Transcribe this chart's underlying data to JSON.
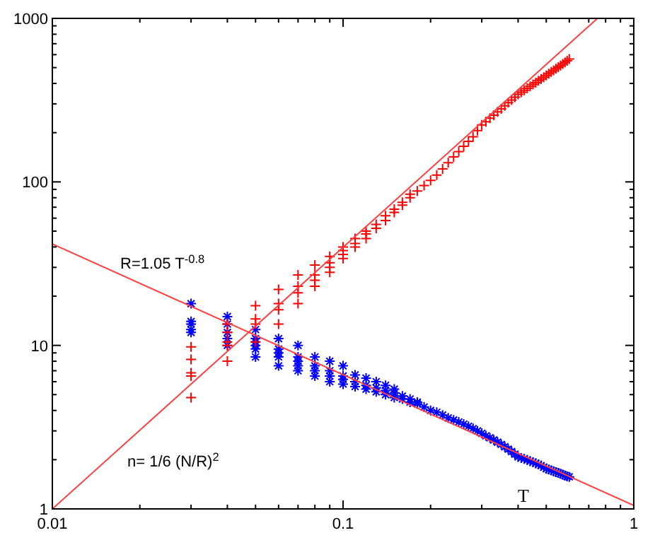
{
  "chart_data": {
    "type": "scatter",
    "log": "xy",
    "xlabel": "T",
    "xlim": [
      0.01,
      1
    ],
    "ylim": [
      1,
      1000
    ],
    "xticks": [
      0.01,
      {
        "value": 0.02,
        "label": null
      },
      {
        "value": 0.03,
        "label": null
      },
      {
        "value": 0.04,
        "label": null
      },
      {
        "value": 0.05,
        "label": null
      },
      {
        "value": 0.06,
        "label": null
      },
      {
        "value": 0.07,
        "label": null
      },
      {
        "value": 0.08,
        "label": null
      },
      {
        "value": 0.09,
        "label": null
      },
      0.1,
      {
        "value": 0.2,
        "label": null
      },
      {
        "value": 0.3,
        "label": null
      },
      {
        "value": 0.4,
        "label": null
      },
      {
        "value": 0.5,
        "label": null
      },
      {
        "value": 0.6,
        "label": null
      },
      {
        "value": 0.7,
        "label": null
      },
      {
        "value": 0.8,
        "label": null
      },
      {
        "value": 0.9,
        "label": null
      },
      1
    ],
    "yticks": [
      1,
      {
        "value": 2,
        "label": null
      },
      {
        "value": 3,
        "label": null
      },
      {
        "value": 4,
        "label": null
      },
      {
        "value": 5,
        "label": null
      },
      {
        "value": 6,
        "label": null
      },
      {
        "value": 7,
        "label": null
      },
      {
        "value": 8,
        "label": null
      },
      {
        "value": 9,
        "label": null
      },
      10,
      {
        "value": 20,
        "label": null
      },
      {
        "value": 30,
        "label": null
      },
      {
        "value": 40,
        "label": null
      },
      {
        "value": 50,
        "label": null
      },
      {
        "value": 60,
        "label": null
      },
      {
        "value": 70,
        "label": null
      },
      {
        "value": 80,
        "label": null
      },
      {
        "value": 90,
        "label": null
      },
      100,
      {
        "value": 200,
        "label": null
      },
      {
        "value": 300,
        "label": null
      },
      {
        "value": 400,
        "label": null
      },
      {
        "value": 500,
        "label": null
      },
      {
        "value": 600,
        "label": null
      },
      {
        "value": 700,
        "label": null
      },
      {
        "value": 800,
        "label": null
      },
      {
        "value": 900,
        "label": null
      },
      1000
    ],
    "annotations": [
      "R=1.05 T$^{-0.8}$",
      "n= 1/6 (N/R)$^{2}$"
    ],
    "series": [
      {
        "type": "line",
        "color": "#ff4040",
        "marker": "none",
        "line_style": "solid",
        "x": [
          0.01,
          1
        ],
        "values": [
          41.7,
          1.05
        ]
      },
      {
        "type": "line",
        "color": "#ff4040",
        "marker": "none",
        "line_style": "solid",
        "x": [
          0.01,
          0.75
        ],
        "values": [
          1,
          1000
        ]
      },
      {
        "color": "#ff0000",
        "marker": "cross",
        "x": [
          0.03,
          0.03,
          0.03,
          0.03,
          0.03,
          0.04,
          0.04,
          0.04,
          0.04,
          0.04,
          0.05,
          0.05,
          0.05,
          0.05,
          0.06,
          0.06,
          0.06,
          0.06,
          0.07,
          0.07,
          0.07,
          0.07,
          0.08,
          0.08,
          0.08,
          0.08,
          0.09,
          0.09,
          0.09,
          0.09,
          0.1,
          0.1,
          0.1,
          0.1,
          0.11,
          0.11,
          0.11,
          0.12,
          0.12,
          0.12,
          0.13,
          0.13,
          0.14,
          0.14,
          0.15,
          0.15,
          0.16,
          0.16,
          0.17,
          0.17,
          0.18,
          0.19,
          0.2,
          0.21,
          0.22,
          0.23,
          0.24,
          0.25,
          0.26,
          0.27,
          0.28,
          0.29,
          0.3,
          0.31,
          0.32,
          0.33,
          0.34,
          0.35,
          0.36,
          0.37,
          0.38,
          0.39,
          0.4,
          0.41,
          0.42,
          0.43,
          0.44,
          0.45,
          0.46,
          0.47,
          0.48,
          0.49,
          0.5,
          0.51,
          0.52,
          0.53,
          0.54,
          0.55,
          0.56,
          0.57,
          0.58,
          0.59,
          0.6
        ],
        "values": [
          4.8,
          6.5,
          6.8,
          8.2,
          9.8,
          8,
          10,
          10.5,
          12,
          13.5,
          10.5,
          13.5,
          14.5,
          17.5,
          13.5,
          16.5,
          18,
          22,
          18,
          21,
          23,
          27,
          23,
          25,
          27,
          31,
          28,
          30,
          32,
          35,
          34,
          36,
          38,
          40,
          40,
          42,
          45,
          45,
          48,
          50,
          52,
          55,
          58,
          62,
          65,
          68,
          72,
          75,
          80,
          84,
          88,
          95,
          102,
          110,
          120,
          131,
          142,
          153,
          165,
          177,
          189,
          206,
          223,
          233,
          245,
          256,
          268,
          280,
          292,
          305,
          317,
          330,
          343,
          353,
          363,
          373,
          384,
          394,
          404,
          415,
          426,
          437,
          448,
          459,
          470,
          481,
          492,
          503,
          514,
          526,
          538,
          550,
          564
        ]
      },
      {
        "color": "#0000ff",
        "x": [
          0.03,
          0.03,
          0.03,
          0.03,
          0.03,
          0.04,
          0.04,
          0.04,
          0.04,
          0.04,
          0.05,
          0.05,
          0.05,
          0.05,
          0.05,
          0.05,
          0.06,
          0.06,
          0.06,
          0.06,
          0.06,
          0.07,
          0.07,
          0.07,
          0.07,
          0.07,
          0.08,
          0.08,
          0.08,
          0.08,
          0.09,
          0.09,
          0.09,
          0.09,
          0.1,
          0.1,
          0.1,
          0.1,
          0.11,
          0.11,
          0.11,
          0.12,
          0.12,
          0.12,
          0.13,
          0.13,
          0.13,
          0.14,
          0.14,
          0.14,
          0.15,
          0.15,
          0.15,
          0.16,
          0.16,
          0.17,
          0.17,
          0.18,
          0.18,
          0.19,
          0.2,
          0.21,
          0.22,
          0.23,
          0.24,
          0.25,
          0.26,
          0.27,
          0.28,
          0.29,
          0.3,
          0.31,
          0.32,
          0.33,
          0.34,
          0.35,
          0.36,
          0.37,
          0.38,
          0.39,
          0.4,
          0.41,
          0.42,
          0.43,
          0.44,
          0.45,
          0.46,
          0.47,
          0.48,
          0.49,
          0.5,
          0.51,
          0.52,
          0.53,
          0.54,
          0.55,
          0.56,
          0.57,
          0.58,
          0.59,
          0.6
        ],
        "values": [
          12,
          12.5,
          13.5,
          14,
          18,
          10,
          11,
          12,
          13.5,
          15,
          8.5,
          9.5,
          10,
          10.5,
          11,
          12.5,
          7.5,
          8.5,
          9,
          9.5,
          11,
          7,
          7.5,
          8,
          8.5,
          10,
          6.5,
          7,
          7.5,
          8.5,
          6,
          6.5,
          7,
          8,
          5.8,
          6.2,
          6.5,
          7.5,
          5.6,
          6,
          6.6,
          5.4,
          5.7,
          6.3,
          5.2,
          5.5,
          6,
          5,
          5.3,
          5.7,
          4.8,
          5.1,
          5.4,
          4.7,
          4.9,
          4.5,
          4.7,
          4.4,
          4.5,
          4.2,
          4,
          3.9,
          3.75,
          3.6,
          3.5,
          3.4,
          3.3,
          3.2,
          3.1,
          3,
          2.9,
          2.8,
          2.72,
          2.64,
          2.56,
          2.48,
          2.4,
          2.32,
          2.24,
          2.16,
          2.08,
          2.05,
          2.02,
          1.99,
          1.96,
          1.93,
          1.9,
          1.87,
          1.84,
          1.8,
          1.76,
          1.74,
          1.72,
          1.7,
          1.68,
          1.66,
          1.64,
          1.62,
          1.6,
          1.58,
          1.57
        ]
      }
    ]
  }
}
